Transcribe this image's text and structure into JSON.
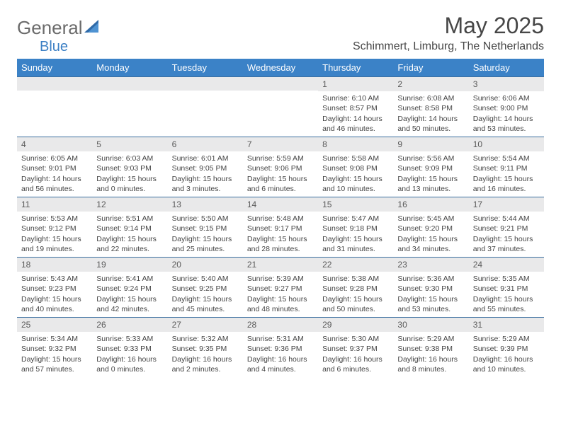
{
  "logo": {
    "general": "General",
    "blue": "Blue"
  },
  "title": "May 2025",
  "location": "Schimmert, Limburg, The Netherlands",
  "weekdays": [
    "Sunday",
    "Monday",
    "Tuesday",
    "Wednesday",
    "Thursday",
    "Friday",
    "Saturday"
  ],
  "colors": {
    "header_bar": "#3b82c7",
    "row_divider": "#3b6fa0",
    "daynum_bg": "#e9e9ea",
    "title_text": "#474747",
    "logo_gray": "#6b6b6b",
    "logo_blue": "#3b7fc4"
  },
  "weeks": [
    [
      {
        "n": "",
        "lines": []
      },
      {
        "n": "",
        "lines": []
      },
      {
        "n": "",
        "lines": []
      },
      {
        "n": "",
        "lines": []
      },
      {
        "n": "1",
        "lines": [
          "Sunrise: 6:10 AM",
          "Sunset: 8:57 PM",
          "Daylight: 14 hours and 46 minutes."
        ]
      },
      {
        "n": "2",
        "lines": [
          "Sunrise: 6:08 AM",
          "Sunset: 8:58 PM",
          "Daylight: 14 hours and 50 minutes."
        ]
      },
      {
        "n": "3",
        "lines": [
          "Sunrise: 6:06 AM",
          "Sunset: 9:00 PM",
          "Daylight: 14 hours and 53 minutes."
        ]
      }
    ],
    [
      {
        "n": "4",
        "lines": [
          "Sunrise: 6:05 AM",
          "Sunset: 9:01 PM",
          "Daylight: 14 hours and 56 minutes."
        ]
      },
      {
        "n": "5",
        "lines": [
          "Sunrise: 6:03 AM",
          "Sunset: 9:03 PM",
          "Daylight: 15 hours and 0 minutes."
        ]
      },
      {
        "n": "6",
        "lines": [
          "Sunrise: 6:01 AM",
          "Sunset: 9:05 PM",
          "Daylight: 15 hours and 3 minutes."
        ]
      },
      {
        "n": "7",
        "lines": [
          "Sunrise: 5:59 AM",
          "Sunset: 9:06 PM",
          "Daylight: 15 hours and 6 minutes."
        ]
      },
      {
        "n": "8",
        "lines": [
          "Sunrise: 5:58 AM",
          "Sunset: 9:08 PM",
          "Daylight: 15 hours and 10 minutes."
        ]
      },
      {
        "n": "9",
        "lines": [
          "Sunrise: 5:56 AM",
          "Sunset: 9:09 PM",
          "Daylight: 15 hours and 13 minutes."
        ]
      },
      {
        "n": "10",
        "lines": [
          "Sunrise: 5:54 AM",
          "Sunset: 9:11 PM",
          "Daylight: 15 hours and 16 minutes."
        ]
      }
    ],
    [
      {
        "n": "11",
        "lines": [
          "Sunrise: 5:53 AM",
          "Sunset: 9:12 PM",
          "Daylight: 15 hours and 19 minutes."
        ]
      },
      {
        "n": "12",
        "lines": [
          "Sunrise: 5:51 AM",
          "Sunset: 9:14 PM",
          "Daylight: 15 hours and 22 minutes."
        ]
      },
      {
        "n": "13",
        "lines": [
          "Sunrise: 5:50 AM",
          "Sunset: 9:15 PM",
          "Daylight: 15 hours and 25 minutes."
        ]
      },
      {
        "n": "14",
        "lines": [
          "Sunrise: 5:48 AM",
          "Sunset: 9:17 PM",
          "Daylight: 15 hours and 28 minutes."
        ]
      },
      {
        "n": "15",
        "lines": [
          "Sunrise: 5:47 AM",
          "Sunset: 9:18 PM",
          "Daylight: 15 hours and 31 minutes."
        ]
      },
      {
        "n": "16",
        "lines": [
          "Sunrise: 5:45 AM",
          "Sunset: 9:20 PM",
          "Daylight: 15 hours and 34 minutes."
        ]
      },
      {
        "n": "17",
        "lines": [
          "Sunrise: 5:44 AM",
          "Sunset: 9:21 PM",
          "Daylight: 15 hours and 37 minutes."
        ]
      }
    ],
    [
      {
        "n": "18",
        "lines": [
          "Sunrise: 5:43 AM",
          "Sunset: 9:23 PM",
          "Daylight: 15 hours and 40 minutes."
        ]
      },
      {
        "n": "19",
        "lines": [
          "Sunrise: 5:41 AM",
          "Sunset: 9:24 PM",
          "Daylight: 15 hours and 42 minutes."
        ]
      },
      {
        "n": "20",
        "lines": [
          "Sunrise: 5:40 AM",
          "Sunset: 9:25 PM",
          "Daylight: 15 hours and 45 minutes."
        ]
      },
      {
        "n": "21",
        "lines": [
          "Sunrise: 5:39 AM",
          "Sunset: 9:27 PM",
          "Daylight: 15 hours and 48 minutes."
        ]
      },
      {
        "n": "22",
        "lines": [
          "Sunrise: 5:38 AM",
          "Sunset: 9:28 PM",
          "Daylight: 15 hours and 50 minutes."
        ]
      },
      {
        "n": "23",
        "lines": [
          "Sunrise: 5:36 AM",
          "Sunset: 9:30 PM",
          "Daylight: 15 hours and 53 minutes."
        ]
      },
      {
        "n": "24",
        "lines": [
          "Sunrise: 5:35 AM",
          "Sunset: 9:31 PM",
          "Daylight: 15 hours and 55 minutes."
        ]
      }
    ],
    [
      {
        "n": "25",
        "lines": [
          "Sunrise: 5:34 AM",
          "Sunset: 9:32 PM",
          "Daylight: 15 hours and 57 minutes."
        ]
      },
      {
        "n": "26",
        "lines": [
          "Sunrise: 5:33 AM",
          "Sunset: 9:33 PM",
          "Daylight: 16 hours and 0 minutes."
        ]
      },
      {
        "n": "27",
        "lines": [
          "Sunrise: 5:32 AM",
          "Sunset: 9:35 PM",
          "Daylight: 16 hours and 2 minutes."
        ]
      },
      {
        "n": "28",
        "lines": [
          "Sunrise: 5:31 AM",
          "Sunset: 9:36 PM",
          "Daylight: 16 hours and 4 minutes."
        ]
      },
      {
        "n": "29",
        "lines": [
          "Sunrise: 5:30 AM",
          "Sunset: 9:37 PM",
          "Daylight: 16 hours and 6 minutes."
        ]
      },
      {
        "n": "30",
        "lines": [
          "Sunrise: 5:29 AM",
          "Sunset: 9:38 PM",
          "Daylight: 16 hours and 8 minutes."
        ]
      },
      {
        "n": "31",
        "lines": [
          "Sunrise: 5:29 AM",
          "Sunset: 9:39 PM",
          "Daylight: 16 hours and 10 minutes."
        ]
      }
    ]
  ]
}
